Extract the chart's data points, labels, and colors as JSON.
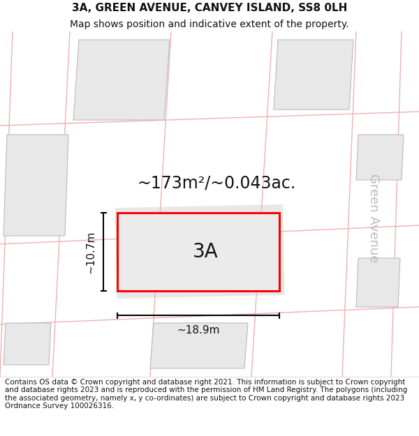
{
  "title_line1": "3A, GREEN AVENUE, CANVEY ISLAND, SS8 0LH",
  "title_line2": "Map shows position and indicative extent of the property.",
  "footer_text": "Contains OS data © Crown copyright and database right 2021. This information is subject to Crown copyright and database rights 2023 and is reproduced with the permission of HM Land Registry. The polygons (including the associated geometry, namely x, y co-ordinates) are subject to Crown copyright and database rights 2023 Ordnance Survey 100026316.",
  "area_label": "~173m²/~0.043ac.",
  "property_label": "3A",
  "dim_width_label": "~18.9m",
  "dim_height_label": "~10.7m",
  "street_label": "Green Avenue",
  "bg_color": "#ffffff",
  "map_bg": "#ffffff",
  "building_fill": "#e8e8e8",
  "building_edge": "#bbbbbb",
  "road_line_color": "#f0b0b0",
  "highlight_color": "#ff0000",
  "dim_color": "#111111",
  "text_color": "#111111",
  "street_label_color": "#bbbbbb",
  "title_fontsize": 11,
  "subtitle_fontsize": 10,
  "footer_fontsize": 7.5,
  "prop_label_fontsize": 20,
  "area_fontsize": 17,
  "dim_fontsize": 11,
  "street_fontsize": 13
}
